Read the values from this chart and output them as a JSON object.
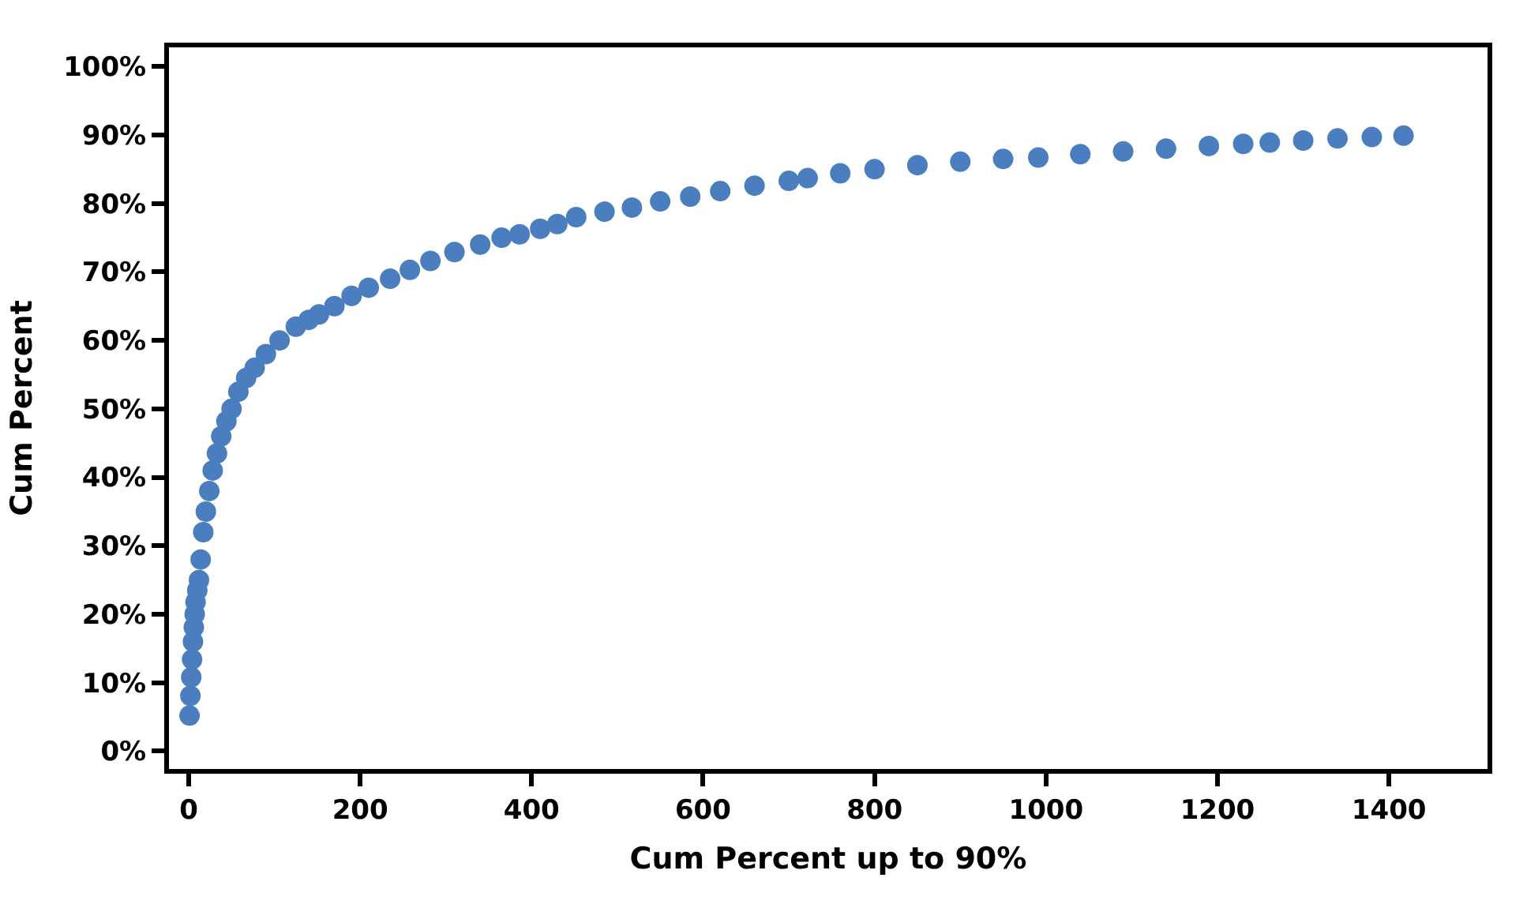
{
  "chart_data": {
    "type": "scatter",
    "xlabel": "Cum Percent up to 90%",
    "ylabel": "Cum Percent",
    "x": [
      1,
      2,
      3,
      4,
      5,
      6,
      7,
      8,
      10,
      12,
      14,
      17,
      20,
      24,
      28,
      33,
      38,
      44,
      50,
      58,
      67,
      77,
      90,
      106,
      125,
      140,
      152,
      170,
      190,
      210,
      235,
      258,
      282,
      310,
      340,
      365,
      386,
      410,
      430,
      452,
      485,
      517,
      550,
      585,
      620,
      660,
      700,
      722,
      760,
      800,
      850,
      900,
      950,
      991,
      1040,
      1090,
      1140,
      1190,
      1230,
      1261,
      1300,
      1340,
      1380,
      1417
    ],
    "series": [
      {
        "color": "#4a7ebf",
        "values": [
          5.2,
          8.1,
          10.8,
          13.4,
          16.0,
          18.1,
          20.0,
          21.8,
          23.5,
          25.0,
          28.0,
          32.0,
          35.0,
          38.0,
          41.0,
          43.5,
          46.0,
          48.2,
          50.0,
          52.5,
          54.5,
          56.0,
          58.0,
          60.0,
          62.0,
          63.0,
          63.8,
          65.0,
          66.5,
          67.7,
          69.0,
          70.3,
          71.6,
          72.9,
          74.0,
          75.0,
          75.5,
          76.3,
          77.0,
          78.0,
          78.8,
          79.4,
          80.3,
          81.0,
          81.8,
          82.6,
          83.3,
          83.7,
          84.4,
          85.0,
          85.6,
          86.1,
          86.5,
          86.7,
          87.2,
          87.6,
          88.0,
          88.4,
          88.7,
          88.9,
          89.2,
          89.5,
          89.7,
          89.9
        ]
      }
    ],
    "xlim": [
      -23,
      1515
    ],
    "xticks": [
      0,
      200,
      400,
      600,
      800,
      1000,
      1200,
      1400
    ],
    "ylim": [
      -2.6,
      102.8
    ],
    "yticks": [
      {
        "value": 0,
        "label": "0%"
      },
      {
        "value": 10,
        "label": "10%"
      },
      {
        "value": 20,
        "label": "20%"
      },
      {
        "value": 30,
        "label": "30%"
      },
      {
        "value": 40,
        "label": "40%"
      },
      {
        "value": 50,
        "label": "50%"
      },
      {
        "value": 60,
        "label": "60%"
      },
      {
        "value": 70,
        "label": "70%"
      },
      {
        "value": 80,
        "label": "80%"
      },
      {
        "value": 90,
        "label": "90%"
      },
      {
        "value": 100,
        "label": "100%"
      }
    ],
    "marker": "circle"
  }
}
